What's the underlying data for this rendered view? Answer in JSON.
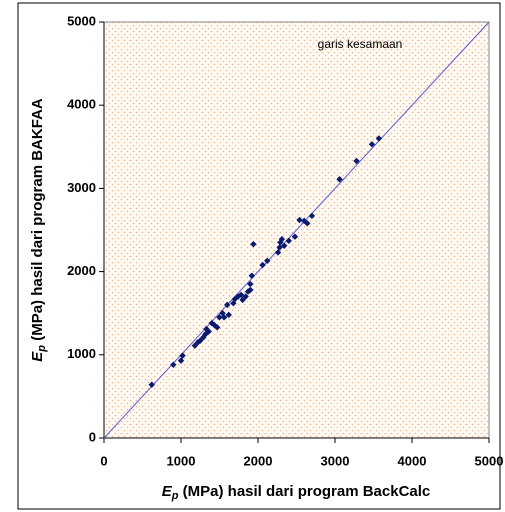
{
  "chart_data": {
    "type": "scatter",
    "annotation": "garis kesamaan",
    "xlabel": {
      "main": "E",
      "sub": "p",
      "rest": " (MPa) hasil dari program BackCalc"
    },
    "ylabel": {
      "main": "E",
      "sub": "p",
      "rest": " (MPa) hasil dari program BAKFAA"
    },
    "xlim": [
      0,
      5000
    ],
    "ylim": [
      0,
      5000
    ],
    "xticks": [
      0,
      1000,
      2000,
      3000,
      4000,
      5000
    ],
    "yticks": [
      0,
      1000,
      2000,
      3000,
      4000,
      5000
    ],
    "color": "#0a1a6e",
    "line_color": "#5b5bd6",
    "x": [
      620,
      900,
      1000,
      1020,
      1180,
      1220,
      1250,
      1290,
      1320,
      1330,
      1360,
      1400,
      1430,
      1470,
      1500,
      1540,
      1560,
      1600,
      1620,
      1680,
      1700,
      1740,
      1780,
      1800,
      1840,
      1870,
      1900,
      1900,
      1920,
      1940,
      2060,
      2120,
      2260,
      2280,
      2290,
      2310,
      2340,
      2400,
      2480,
      2540,
      2600,
      2640,
      2700,
      3060,
      3280,
      3480,
      3570
    ],
    "y": [
      640,
      880,
      930,
      990,
      1110,
      1150,
      1170,
      1210,
      1250,
      1310,
      1280,
      1380,
      1360,
      1330,
      1450,
      1500,
      1450,
      1600,
      1480,
      1620,
      1670,
      1700,
      1720,
      1660,
      1700,
      1760,
      1850,
      1780,
      1950,
      2330,
      2080,
      2130,
      2230,
      2290,
      2350,
      2390,
      2310,
      2370,
      2420,
      2620,
      2610,
      2580,
      2670,
      3110,
      3330,
      3530,
      3600
    ]
  }
}
